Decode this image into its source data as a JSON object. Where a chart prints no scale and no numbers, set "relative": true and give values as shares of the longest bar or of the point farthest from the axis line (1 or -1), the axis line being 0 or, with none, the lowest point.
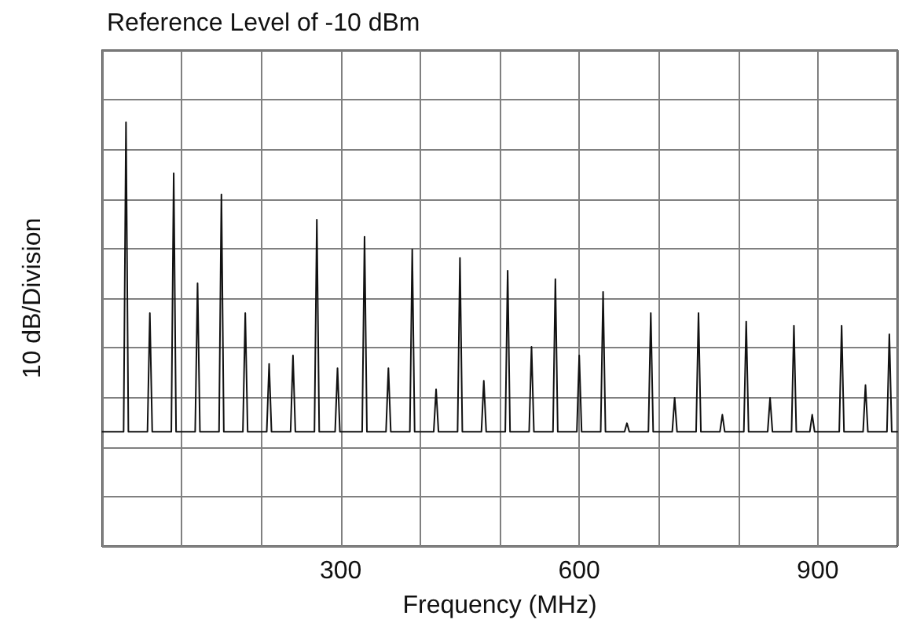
{
  "chart_data": {
    "type": "line",
    "title": "Reference Level of -10 dBm",
    "xlabel": "Frequency (MHz)",
    "ylabel": "10 dB/Division",
    "relative": true,
    "xlim": [
      0,
      1000
    ],
    "xticks": [
      {
        "value": 0,
        "label": null
      },
      {
        "value": 100,
        "label": null
      },
      {
        "value": 200,
        "label": null
      },
      300,
      {
        "value": 400,
        "label": null
      },
      {
        "value": 500,
        "label": null
      },
      600,
      {
        "value": 700,
        "label": null
      },
      {
        "value": 800,
        "label": null
      },
      900,
      {
        "value": 1000,
        "label": null
      }
    ],
    "grid": true,
    "marker": "none",
    "line_style": "solid",
    "series": [
      {
        "color": "#111111",
        "x": [
          0,
          27,
          30,
          33,
          57,
          60,
          63,
          87,
          90,
          93,
          117,
          120,
          123,
          147,
          150,
          153,
          177,
          180,
          183,
          207,
          210,
          213,
          237,
          240,
          243,
          267,
          270,
          273,
          293,
          296,
          299,
          327,
          330,
          333,
          357,
          360,
          363,
          387,
          390,
          393,
          417,
          420,
          423,
          447,
          450,
          453,
          477,
          480,
          483,
          507,
          510,
          513,
          537,
          540,
          543,
          567,
          570,
          573,
          597,
          600,
          603,
          627,
          630,
          633,
          657,
          660,
          663,
          687,
          690,
          693,
          717,
          720,
          723,
          747,
          750,
          753,
          777,
          780,
          783,
          807,
          810,
          813,
          837,
          840,
          843,
          867,
          870,
          873,
          890,
          893,
          896,
          927,
          930,
          933,
          957,
          960,
          963,
          987,
          990,
          993,
          1000
        ],
        "values": [
          0.27,
          0.27,
          1.0,
          0.27,
          0.27,
          0.55,
          0.27,
          0.27,
          0.88,
          0.27,
          0.27,
          0.62,
          0.27,
          0.27,
          0.83,
          0.27,
          0.27,
          0.55,
          0.27,
          0.27,
          0.43,
          0.27,
          0.27,
          0.45,
          0.27,
          0.27,
          0.77,
          0.27,
          0.27,
          0.42,
          0.27,
          0.27,
          0.73,
          0.27,
          0.27,
          0.42,
          0.27,
          0.27,
          0.7,
          0.27,
          0.27,
          0.37,
          0.27,
          0.27,
          0.68,
          0.27,
          0.27,
          0.39,
          0.27,
          0.27,
          0.65,
          0.27,
          0.27,
          0.47,
          0.27,
          0.27,
          0.63,
          0.27,
          0.27,
          0.45,
          0.27,
          0.27,
          0.6,
          0.27,
          0.27,
          0.29,
          0.27,
          0.27,
          0.55,
          0.27,
          0.27,
          0.35,
          0.27,
          0.27,
          0.55,
          0.27,
          0.27,
          0.31,
          0.27,
          0.27,
          0.53,
          0.27,
          0.27,
          0.35,
          0.27,
          0.27,
          0.52,
          0.27,
          0.27,
          0.31,
          0.27,
          0.27,
          0.52,
          0.27,
          0.27,
          0.38,
          0.27,
          0.27,
          0.5,
          0.27,
          0.27
        ]
      }
    ]
  }
}
